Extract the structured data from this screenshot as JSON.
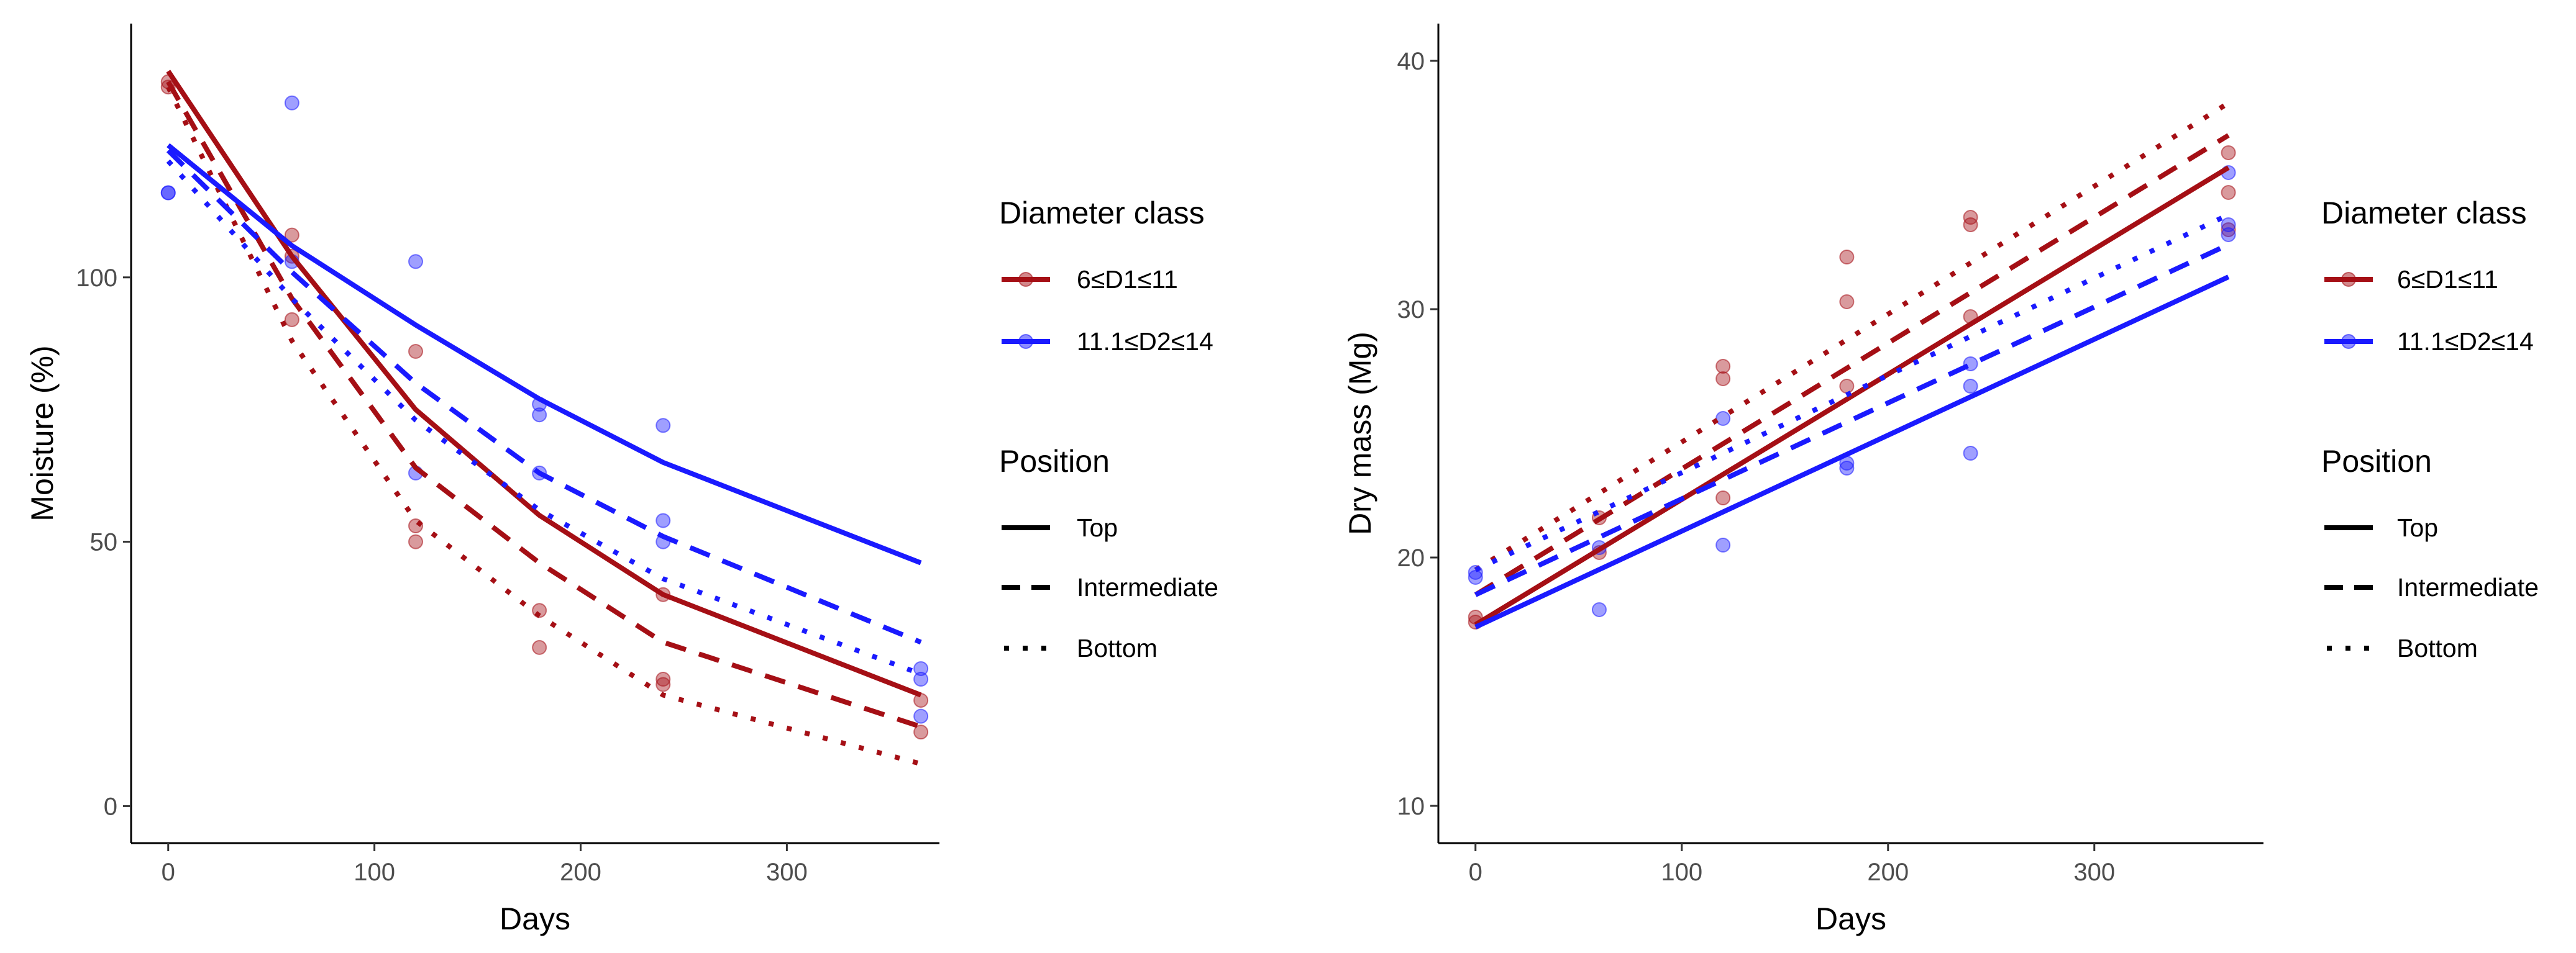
{
  "colors": {
    "d1": "#a50f15",
    "d2": "#1a1aff"
  },
  "legend": {
    "diameter_title": "Diameter class",
    "diameter_items": [
      {
        "label": "6≤D1≤11",
        "color_key": "d1"
      },
      {
        "label": "11.1≤D2≤14",
        "color_key": "d2"
      }
    ],
    "position_title": "Position",
    "position_items": [
      {
        "label": "Top",
        "style": "solid"
      },
      {
        "label": "Intermediate",
        "style": "dashed"
      },
      {
        "label": "Bottom",
        "style": "dotted"
      }
    ]
  },
  "chart_data": [
    {
      "type": "line",
      "id": "moisture",
      "xlabel": "Days",
      "ylabel": "Moisture (%)",
      "xlim": [
        -18,
        374
      ],
      "ylim": [
        -7,
        148
      ],
      "xticks": [
        0,
        100,
        200,
        300
      ],
      "yticks": [
        0,
        50,
        100
      ],
      "series": [
        {
          "name": "Top",
          "diameter": "6≤D1≤11",
          "color_key": "d1",
          "style": "solid",
          "x": [
            0,
            60,
            120,
            180,
            240,
            365
          ],
          "y": [
            139,
            104,
            75,
            55,
            40,
            21
          ]
        },
        {
          "name": "Intermediate",
          "diameter": "6≤D1≤11",
          "color_key": "d1",
          "style": "dashed",
          "x": [
            0,
            60,
            120,
            180,
            240,
            365
          ],
          "y": [
            137,
            96,
            64,
            46,
            31,
            15
          ]
        },
        {
          "name": "Bottom",
          "diameter": "6≤D1≤11",
          "color_key": "d1",
          "style": "dotted",
          "x": [
            0,
            60,
            120,
            180,
            240,
            365
          ],
          "y": [
            136,
            88,
            54,
            36,
            21,
            8
          ]
        },
        {
          "name": "Top",
          "diameter": "11.1≤D2≤14",
          "color_key": "d2",
          "style": "solid",
          "x": [
            0,
            60,
            120,
            180,
            240,
            365
          ],
          "y": [
            125,
            106,
            91,
            77,
            65,
            46
          ]
        },
        {
          "name": "Intermediate",
          "diameter": "11.1≤D2≤14",
          "color_key": "d2",
          "style": "dashed",
          "x": [
            0,
            60,
            120,
            180,
            240,
            365
          ],
          "y": [
            124,
            101,
            80,
            63,
            51,
            31
          ]
        },
        {
          "name": "Bottom",
          "diameter": "11.1≤D2≤14",
          "color_key": "d2",
          "style": "dotted",
          "x": [
            0,
            60,
            120,
            180,
            240,
            365
          ],
          "y": [
            122,
            96,
            73,
            56,
            43,
            25
          ]
        }
      ],
      "points": [
        {
          "x": 0,
          "y": 137,
          "color_key": "d1"
        },
        {
          "x": 0,
          "y": 136,
          "color_key": "d1"
        },
        {
          "x": 60,
          "y": 108,
          "color_key": "d1"
        },
        {
          "x": 60,
          "y": 104,
          "color_key": "d1"
        },
        {
          "x": 60,
          "y": 92,
          "color_key": "d1"
        },
        {
          "x": 120,
          "y": 86,
          "color_key": "d1"
        },
        {
          "x": 120,
          "y": 53,
          "color_key": "d1"
        },
        {
          "x": 120,
          "y": 50,
          "color_key": "d1"
        },
        {
          "x": 180,
          "y": 37,
          "color_key": "d1"
        },
        {
          "x": 180,
          "y": 30,
          "color_key": "d1"
        },
        {
          "x": 240,
          "y": 40,
          "color_key": "d1"
        },
        {
          "x": 240,
          "y": 24,
          "color_key": "d1"
        },
        {
          "x": 240,
          "y": 23,
          "color_key": "d1"
        },
        {
          "x": 365,
          "y": 20,
          "color_key": "d1"
        },
        {
          "x": 365,
          "y": 14,
          "color_key": "d1"
        },
        {
          "x": 0,
          "y": 116,
          "color_key": "d2"
        },
        {
          "x": 0,
          "y": 116,
          "color_key": "d2"
        },
        {
          "x": 60,
          "y": 133,
          "color_key": "d2"
        },
        {
          "x": 60,
          "y": 103,
          "color_key": "d2"
        },
        {
          "x": 120,
          "y": 103,
          "color_key": "d2"
        },
        {
          "x": 120,
          "y": 63,
          "color_key": "d2"
        },
        {
          "x": 180,
          "y": 76,
          "color_key": "d2"
        },
        {
          "x": 180,
          "y": 74,
          "color_key": "d2"
        },
        {
          "x": 180,
          "y": 63,
          "color_key": "d2"
        },
        {
          "x": 240,
          "y": 72,
          "color_key": "d2"
        },
        {
          "x": 240,
          "y": 54,
          "color_key": "d2"
        },
        {
          "x": 240,
          "y": 50,
          "color_key": "d2"
        },
        {
          "x": 365,
          "y": 26,
          "color_key": "d2"
        },
        {
          "x": 365,
          "y": 24,
          "color_key": "d2"
        },
        {
          "x": 365,
          "y": 17,
          "color_key": "d2"
        }
      ]
    },
    {
      "type": "line",
      "id": "dry_mass",
      "xlabel": "Days",
      "ylabel": "Dry mass (Mg)",
      "xlim": [
        -18,
        382
      ],
      "ylim": [
        8.5,
        41.5
      ],
      "xticks": [
        0,
        100,
        200,
        300
      ],
      "yticks": [
        10,
        20,
        30,
        40
      ],
      "series": [
        {
          "name": "Top",
          "diameter": "6≤D1≤11",
          "color_key": "d1",
          "style": "solid",
          "x": [
            0,
            365
          ],
          "y": [
            17.3,
            35.7
          ]
        },
        {
          "name": "Intermediate",
          "diameter": "6≤D1≤11",
          "color_key": "d1",
          "style": "dashed",
          "x": [
            0,
            365
          ],
          "y": [
            18.5,
            37.0
          ]
        },
        {
          "name": "Bottom",
          "diameter": "6≤D1≤11",
          "color_key": "d1",
          "style": "dotted",
          "x": [
            0,
            365
          ],
          "y": [
            19.5,
            38.3
          ]
        },
        {
          "name": "Top",
          "diameter": "11.1≤D2≤14",
          "color_key": "d2",
          "style": "solid",
          "x": [
            0,
            365
          ],
          "y": [
            17.2,
            31.3
          ]
        },
        {
          "name": "Intermediate",
          "diameter": "11.1≤D2≤14",
          "color_key": "d2",
          "style": "dashed",
          "x": [
            0,
            365
          ],
          "y": [
            18.5,
            32.6
          ]
        },
        {
          "name": "Bottom",
          "diameter": "11.1≤D2≤14",
          "color_key": "d2",
          "style": "dotted",
          "x": [
            0,
            365
          ],
          "y": [
            19.5,
            33.8
          ]
        }
      ],
      "points": [
        {
          "x": 0,
          "y": 17.6,
          "color_key": "d1"
        },
        {
          "x": 0,
          "y": 17.4,
          "color_key": "d1"
        },
        {
          "x": 60,
          "y": 21.6,
          "color_key": "d1"
        },
        {
          "x": 60,
          "y": 20.2,
          "color_key": "d1"
        },
        {
          "x": 120,
          "y": 27.7,
          "color_key": "d1"
        },
        {
          "x": 120,
          "y": 27.2,
          "color_key": "d1"
        },
        {
          "x": 120,
          "y": 22.4,
          "color_key": "d1"
        },
        {
          "x": 180,
          "y": 32.1,
          "color_key": "d1"
        },
        {
          "x": 180,
          "y": 30.3,
          "color_key": "d1"
        },
        {
          "x": 180,
          "y": 26.9,
          "color_key": "d1"
        },
        {
          "x": 240,
          "y": 33.7,
          "color_key": "d1"
        },
        {
          "x": 240,
          "y": 33.4,
          "color_key": "d1"
        },
        {
          "x": 240,
          "y": 29.7,
          "color_key": "d1"
        },
        {
          "x": 365,
          "y": 36.3,
          "color_key": "d1"
        },
        {
          "x": 365,
          "y": 34.7,
          "color_key": "d1"
        },
        {
          "x": 365,
          "y": 33.2,
          "color_key": "d1"
        },
        {
          "x": 0,
          "y": 19.4,
          "color_key": "d2"
        },
        {
          "x": 0,
          "y": 19.2,
          "color_key": "d2"
        },
        {
          "x": 60,
          "y": 20.4,
          "color_key": "d2"
        },
        {
          "x": 60,
          "y": 17.9,
          "color_key": "d2"
        },
        {
          "x": 120,
          "y": 25.6,
          "color_key": "d2"
        },
        {
          "x": 120,
          "y": 20.5,
          "color_key": "d2"
        },
        {
          "x": 180,
          "y": 23.8,
          "color_key": "d2"
        },
        {
          "x": 180,
          "y": 23.6,
          "color_key": "d2"
        },
        {
          "x": 240,
          "y": 27.8,
          "color_key": "d2"
        },
        {
          "x": 240,
          "y": 26.9,
          "color_key": "d2"
        },
        {
          "x": 240,
          "y": 24.2,
          "color_key": "d2"
        },
        {
          "x": 365,
          "y": 35.5,
          "color_key": "d2"
        },
        {
          "x": 365,
          "y": 33.4,
          "color_key": "d2"
        },
        {
          "x": 365,
          "y": 33.0,
          "color_key": "d2"
        }
      ]
    }
  ]
}
